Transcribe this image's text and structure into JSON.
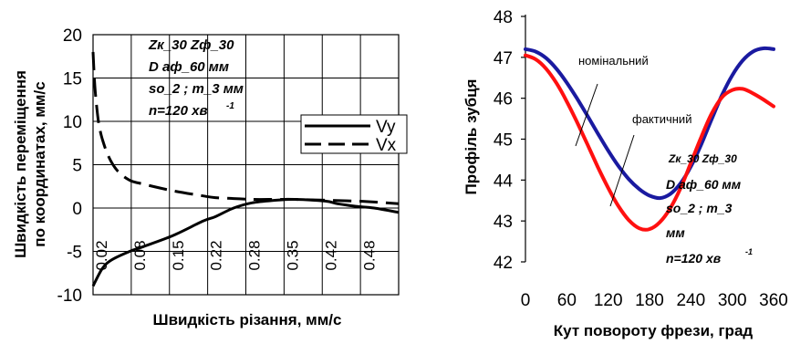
{
  "chart_data": [
    {
      "type": "line",
      "xlabel": "Швидкість різання, мм/с",
      "ylabel_line1": "Швидкість переміщення",
      "ylabel_line2": "по координатах, мм/с",
      "ylim": [
        -10,
        20
      ],
      "yticks": [
        "20",
        "15",
        "10",
        "5",
        "0",
        "-5",
        "-10"
      ],
      "xtick_labels": [
        "0.02",
        "0.08",
        "0.15",
        "0.22",
        "0.28",
        "0.35",
        "0.42",
        "0.48"
      ],
      "xlim": [
        0.02,
        0.52
      ],
      "grid": true,
      "legend_position": "right",
      "legend": [
        "Vy",
        "Vx"
      ],
      "annotation_lines": [
        "Zк_30 Zф_30",
        "D аф_60 мм",
        "so_2 ; m_3 мм",
        "n=120 хв"
      ],
      "annotation_superscript": "-1",
      "series": [
        {
          "name": "Vy",
          "style": "solid",
          "x": [
            0.02,
            0.035,
            0.05,
            0.08,
            0.1,
            0.15,
            0.2,
            0.22,
            0.25,
            0.28,
            0.32,
            0.35,
            0.4,
            0.42,
            0.45,
            0.48,
            0.52
          ],
          "y": [
            -9,
            -7,
            -6,
            -5,
            -4.5,
            -3.2,
            -1.5,
            -1,
            0,
            0.6,
            0.9,
            1,
            0.8,
            0.5,
            0.2,
            0,
            -0.5
          ]
        },
        {
          "name": "Vx",
          "style": "dashed",
          "x": [
            0.02,
            0.023,
            0.027,
            0.03,
            0.035,
            0.045,
            0.06,
            0.08,
            0.1,
            0.15,
            0.2,
            0.22,
            0.25,
            0.28,
            0.32,
            0.35,
            0.4,
            0.45,
            0.48,
            0.52
          ],
          "y": [
            18,
            14,
            11,
            9.5,
            8,
            6,
            4.3,
            3.2,
            2.8,
            2,
            1.4,
            1.2,
            1.1,
            1,
            1,
            1,
            0.9,
            0.8,
            0.7,
            0.5
          ]
        }
      ]
    },
    {
      "type": "line",
      "xlabel": "Кут повороту фрези, град",
      "ylabel": "Профіль зубця",
      "xlim": [
        0,
        360
      ],
      "ylim": [
        42,
        48
      ],
      "xticks": [
        "0",
        "60",
        "120",
        "180",
        "240",
        "300",
        "360"
      ],
      "yticks": [
        "48",
        "47",
        "46",
        "45",
        "44",
        "43",
        "42"
      ],
      "grid": false,
      "annotation_lines": [
        "Zк_30 Zф_30",
        "D аф_60 мм",
        "so_2 ; m_3",
        "мм",
        "n=120 хв"
      ],
      "annotation_superscript": "-1",
      "series": [
        {
          "name": "номінальний",
          "color": "#1a1aa0",
          "x": [
            0,
            15,
            30,
            45,
            60,
            75,
            90,
            105,
            120,
            135,
            150,
            165,
            180,
            195,
            210,
            225,
            240,
            255,
            270,
            285,
            300,
            315,
            330,
            345,
            360
          ],
          "y": [
            47.2,
            47.14,
            46.98,
            46.72,
            46.38,
            45.99,
            45.57,
            45.14,
            44.72,
            44.34,
            44.02,
            43.78,
            43.62,
            43.56,
            43.66,
            43.92,
            44.33,
            44.87,
            45.48,
            46.07,
            46.56,
            46.92,
            47.14,
            47.22,
            47.2
          ]
        },
        {
          "name": "фактичний",
          "color": "#ff1010",
          "x": [
            0,
            15,
            30,
            45,
            60,
            75,
            90,
            105,
            120,
            135,
            150,
            165,
            180,
            195,
            210,
            225,
            240,
            255,
            270,
            285,
            300,
            315,
            330,
            345,
            360
          ],
          "y": [
            47.05,
            46.95,
            46.72,
            46.37,
            45.92,
            45.41,
            44.87,
            44.32,
            43.81,
            43.36,
            43.02,
            42.82,
            42.8,
            42.97,
            43.31,
            43.8,
            44.42,
            45.05,
            45.62,
            46.02,
            46.2,
            46.23,
            46.12,
            45.97,
            45.8
          ]
        }
      ],
      "labels": [
        "номінальний",
        "фактичний"
      ]
    }
  ]
}
